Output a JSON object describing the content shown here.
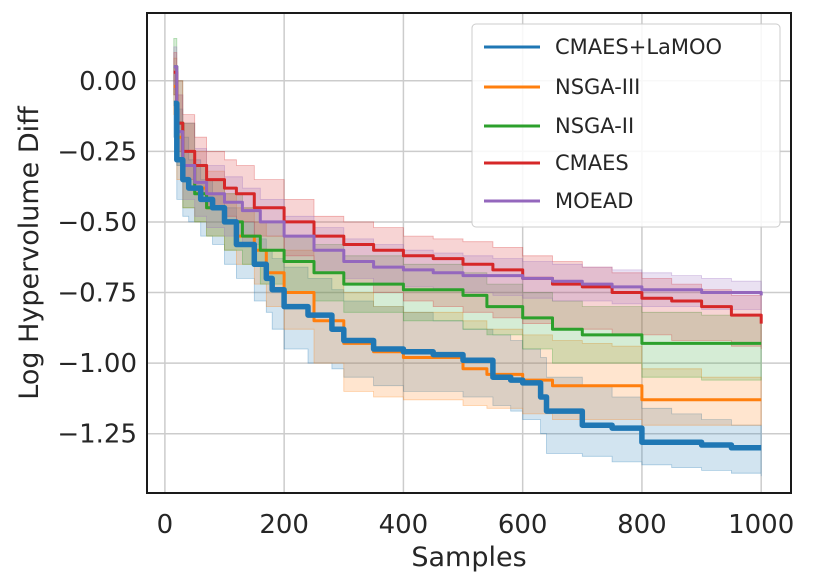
{
  "chart_data": {
    "type": "line",
    "title": "",
    "xlabel": "Samples",
    "ylabel": "Log Hypervolume Diff",
    "xlim": [
      -30,
      1050
    ],
    "ylim": [
      -1.46,
      0.24
    ],
    "xticks": [
      0,
      200,
      400,
      600,
      800,
      1000
    ],
    "xtick_labels": [
      "0",
      "200",
      "400",
      "600",
      "800",
      "1000"
    ],
    "yticks": [
      0.0,
      -0.25,
      -0.5,
      -0.75,
      -1.0,
      -1.25
    ],
    "ytick_labels": [
      "0.00",
      "−0.25",
      "−0.50",
      "−0.75",
      "−1.00",
      "−1.25"
    ],
    "grid": true,
    "legend_position": "top-right",
    "series": [
      {
        "name": "CMAES+LaMOO",
        "color": "#1f77b4",
        "x": [
          15,
          20,
          30,
          40,
          60,
          80,
          100,
          120,
          150,
          170,
          180,
          200,
          240,
          280,
          300,
          350,
          400,
          450,
          500,
          550,
          580,
          600,
          630,
          640,
          700,
          750,
          800,
          850,
          900,
          950,
          1000
        ],
        "y": [
          -0.08,
          -0.28,
          -0.35,
          -0.38,
          -0.42,
          -0.45,
          -0.5,
          -0.58,
          -0.65,
          -0.7,
          -0.74,
          -0.8,
          -0.83,
          -0.88,
          -0.92,
          -0.95,
          -0.96,
          -0.97,
          -0.99,
          -1.05,
          -1.06,
          -1.07,
          -1.12,
          -1.17,
          -1.22,
          -1.23,
          -1.28,
          -1.28,
          -1.29,
          -1.3,
          -1.3
        ],
        "y_upper": [
          0.05,
          -0.1,
          -0.2,
          -0.28,
          -0.35,
          -0.4,
          -0.45,
          -0.5,
          -0.56,
          -0.6,
          -0.63,
          -0.66,
          -0.7,
          -0.74,
          -0.78,
          -0.8,
          -0.82,
          -0.85,
          -0.88,
          -0.9,
          -0.92,
          -0.95,
          -0.98,
          -1.05,
          -1.08,
          -1.12,
          -1.16,
          -1.18,
          -1.2,
          -1.22,
          -1.22
        ],
        "y_lower": [
          -0.2,
          -0.42,
          -0.48,
          -0.5,
          -0.55,
          -0.58,
          -0.65,
          -0.7,
          -0.78,
          -0.82,
          -0.88,
          -0.95,
          -1.0,
          -1.02,
          -1.05,
          -1.08,
          -1.1,
          -1.1,
          -1.12,
          -1.15,
          -1.17,
          -1.2,
          -1.25,
          -1.32,
          -1.33,
          -1.35,
          -1.36,
          -1.37,
          -1.38,
          -1.39,
          -1.4
        ]
      },
      {
        "name": "NSGA-III",
        "color": "#ff7f0e",
        "x": [
          15,
          20,
          30,
          50,
          70,
          100,
          120,
          150,
          170,
          200,
          250,
          300,
          350,
          400,
          500,
          540,
          600,
          650,
          700,
          750,
          800,
          900,
          1000
        ],
        "y": [
          -0.02,
          -0.2,
          -0.3,
          -0.38,
          -0.45,
          -0.5,
          -0.55,
          -0.6,
          -0.68,
          -0.75,
          -0.85,
          -0.93,
          -0.96,
          -0.98,
          -1.02,
          -1.04,
          -1.06,
          -1.08,
          -1.08,
          -1.08,
          -1.13,
          -1.13,
          -1.13
        ],
        "y_upper": [
          0.08,
          -0.05,
          -0.15,
          -0.25,
          -0.32,
          -0.4,
          -0.45,
          -0.5,
          -0.55,
          -0.6,
          -0.68,
          -0.75,
          -0.8,
          -0.82,
          -0.85,
          -0.88,
          -0.9,
          -0.92,
          -0.93,
          -0.94,
          -1.02,
          -1.05,
          -1.06
        ],
        "y_lower": [
          -0.12,
          -0.35,
          -0.45,
          -0.5,
          -0.55,
          -0.6,
          -0.65,
          -0.72,
          -0.8,
          -0.88,
          -1.0,
          -1.1,
          -1.12,
          -1.13,
          -1.15,
          -1.16,
          -1.18,
          -1.2,
          -1.2,
          -1.2,
          -1.22,
          -1.22,
          -1.22
        ]
      },
      {
        "name": "NSGA-II",
        "color": "#2ca02c",
        "x": [
          15,
          20,
          30,
          50,
          70,
          100,
          130,
          160,
          200,
          250,
          300,
          400,
          500,
          540,
          600,
          650,
          700,
          800,
          900,
          1000
        ],
        "y": [
          0.05,
          -0.15,
          -0.3,
          -0.4,
          -0.45,
          -0.5,
          -0.55,
          -0.6,
          -0.64,
          -0.68,
          -0.72,
          -0.74,
          -0.76,
          -0.8,
          -0.84,
          -0.88,
          -0.9,
          -0.93,
          -0.93,
          -0.93
        ],
        "y_upper": [
          0.15,
          0.0,
          -0.15,
          -0.3,
          -0.35,
          -0.4,
          -0.45,
          -0.5,
          -0.55,
          -0.58,
          -0.62,
          -0.65,
          -0.68,
          -0.72,
          -0.75,
          -0.78,
          -0.8,
          -0.82,
          -0.83,
          -0.84
        ],
        "y_lower": [
          -0.05,
          -0.3,
          -0.45,
          -0.5,
          -0.55,
          -0.6,
          -0.65,
          -0.72,
          -0.75,
          -0.78,
          -0.82,
          -0.85,
          -0.88,
          -0.9,
          -0.95,
          -1.0,
          -1.0,
          -1.05,
          -1.06,
          -1.06
        ]
      },
      {
        "name": "CMAES",
        "color": "#d62728",
        "x": [
          15,
          20,
          30,
          50,
          70,
          100,
          120,
          150,
          200,
          250,
          300,
          350,
          400,
          450,
          500,
          550,
          600,
          650,
          700,
          750,
          800,
          850,
          900,
          950,
          1000
        ],
        "y": [
          0.03,
          -0.15,
          -0.25,
          -0.3,
          -0.35,
          -0.38,
          -0.4,
          -0.45,
          -0.5,
          -0.55,
          -0.58,
          -0.6,
          -0.62,
          -0.63,
          -0.65,
          -0.67,
          -0.7,
          -0.72,
          -0.73,
          -0.75,
          -0.77,
          -0.78,
          -0.8,
          -0.83,
          -0.86
        ],
        "y_upper": [
          0.1,
          0.0,
          -0.12,
          -0.2,
          -0.25,
          -0.28,
          -0.3,
          -0.35,
          -0.42,
          -0.48,
          -0.5,
          -0.52,
          -0.55,
          -0.56,
          -0.57,
          -0.59,
          -0.62,
          -0.64,
          -0.66,
          -0.68,
          -0.7,
          -0.72,
          -0.74,
          -0.76,
          -0.78
        ],
        "y_lower": [
          -0.05,
          -0.25,
          -0.35,
          -0.4,
          -0.45,
          -0.48,
          -0.5,
          -0.55,
          -0.62,
          -0.68,
          -0.72,
          -0.75,
          -0.78,
          -0.8,
          -0.82,
          -0.84,
          -0.86,
          -0.88,
          -0.88,
          -0.9,
          -0.9,
          -0.92,
          -0.92,
          -0.94,
          -0.95
        ]
      },
      {
        "name": "MOEAD",
        "color": "#9467bd",
        "x": [
          15,
          20,
          30,
          50,
          70,
          100,
          130,
          160,
          200,
          250,
          300,
          350,
          400,
          450,
          500,
          550,
          600,
          650,
          700,
          750,
          800,
          850,
          900,
          950,
          1000
        ],
        "y": [
          0.05,
          -0.18,
          -0.3,
          -0.36,
          -0.4,
          -0.43,
          -0.46,
          -0.5,
          -0.55,
          -0.6,
          -0.64,
          -0.66,
          -0.67,
          -0.68,
          -0.69,
          -0.69,
          -0.7,
          -0.71,
          -0.72,
          -0.73,
          -0.74,
          -0.74,
          -0.75,
          -0.75,
          -0.76
        ],
        "y_upper": [
          0.12,
          -0.05,
          -0.15,
          -0.24,
          -0.3,
          -0.34,
          -0.38,
          -0.42,
          -0.48,
          -0.52,
          -0.56,
          -0.58,
          -0.6,
          -0.61,
          -0.62,
          -0.63,
          -0.64,
          -0.65,
          -0.66,
          -0.67,
          -0.68,
          -0.69,
          -0.7,
          -0.71,
          -0.71
        ],
        "y_lower": [
          -0.03,
          -0.3,
          -0.42,
          -0.48,
          -0.52,
          -0.55,
          -0.58,
          -0.6,
          -0.64,
          -0.68,
          -0.7,
          -0.72,
          -0.73,
          -0.74,
          -0.75,
          -0.76,
          -0.77,
          -0.78,
          -0.78,
          -0.79,
          -0.8,
          -0.8,
          -0.81,
          -0.81,
          -0.81
        ]
      }
    ]
  }
}
